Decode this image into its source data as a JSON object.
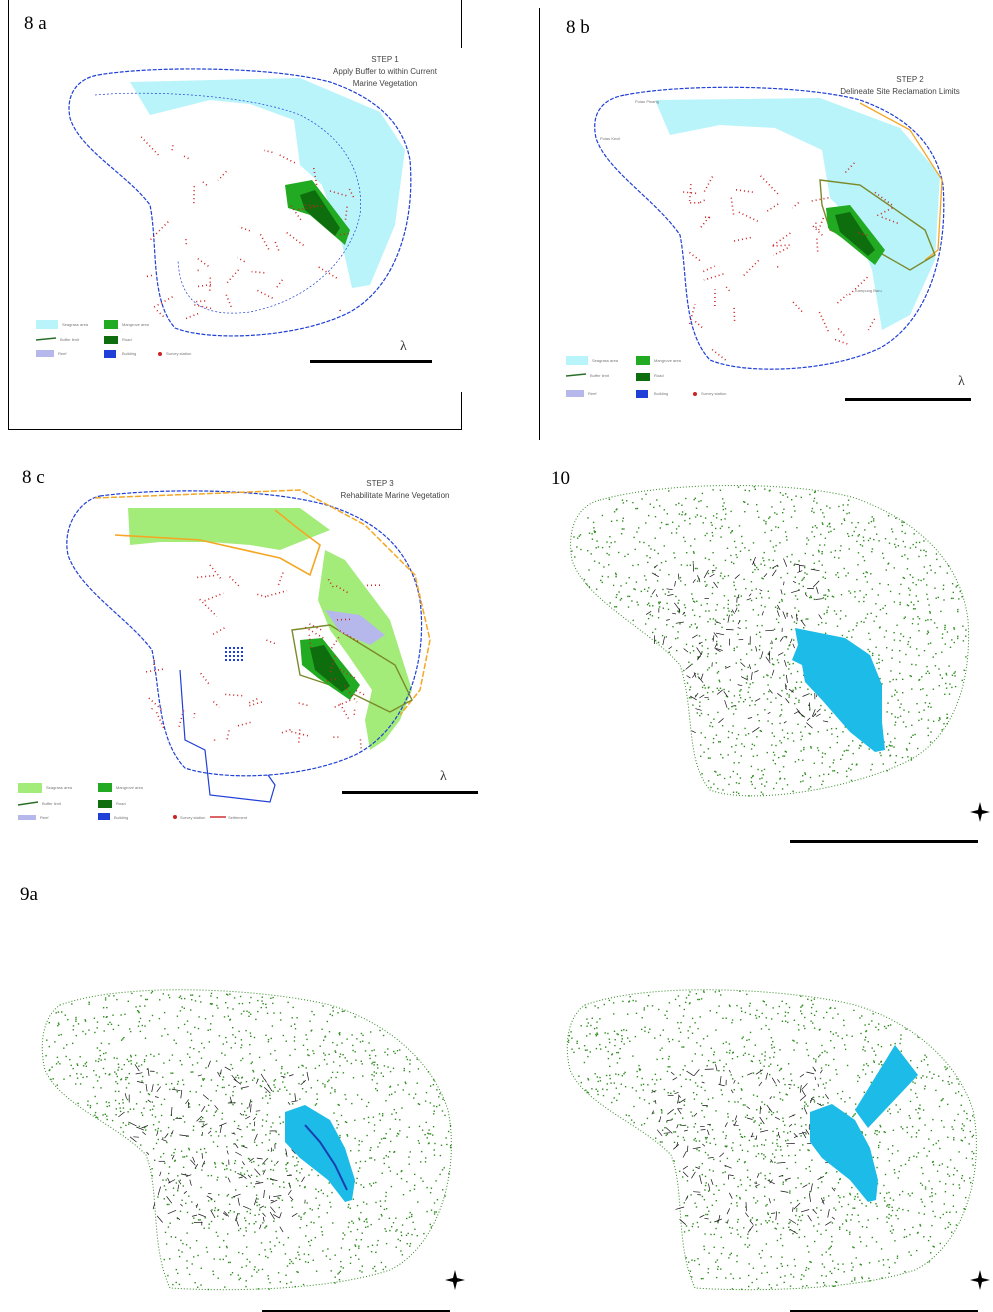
{
  "figure": {
    "panels": [
      {
        "id": "8a",
        "label": "8 a",
        "title_lines": [
          "STEP 1",
          "Apply Buffer to within Current",
          "Marine Vegetation"
        ]
      },
      {
        "id": "8b",
        "label": "8 b",
        "title_lines": [
          "STEP 2",
          "Delineate Site Reclamation Limits"
        ]
      },
      {
        "id": "8c",
        "label": "8 c",
        "title_lines": [
          "STEP 3",
          "Rehabilitate Marine Vegetation"
        ]
      },
      {
        "id": "10",
        "label": "10"
      },
      {
        "id": "9a",
        "label": "9a"
      }
    ],
    "callouts": [
      "Pulau Pinang",
      "Pulau Kecil",
      "Kampung Baru"
    ],
    "legend_items": [
      "Seagrass area",
      "Mangrove area",
      "Reef",
      "Survey station",
      "Building",
      "Road",
      "Settlement",
      "Buffer limit"
    ]
  },
  "colors": {
    "outline_blue": "#1f3fd6",
    "road_red": "#cc2222",
    "buffer_cyan": "#b9f4fb",
    "green_bright": "#22aa22",
    "green_dark": "#0e6e0e",
    "lavender": "#b6b8ec",
    "lime": "#a3ec7a",
    "orange": "#f5a623",
    "olive": "#7a8a2a",
    "vegetation_green": "#2e8b1f",
    "water_blue": "#1cbbe8",
    "stream_blue": "#1a3fb0"
  },
  "icons": [
    "north-arrow-icon",
    "compass-star-icon"
  ]
}
